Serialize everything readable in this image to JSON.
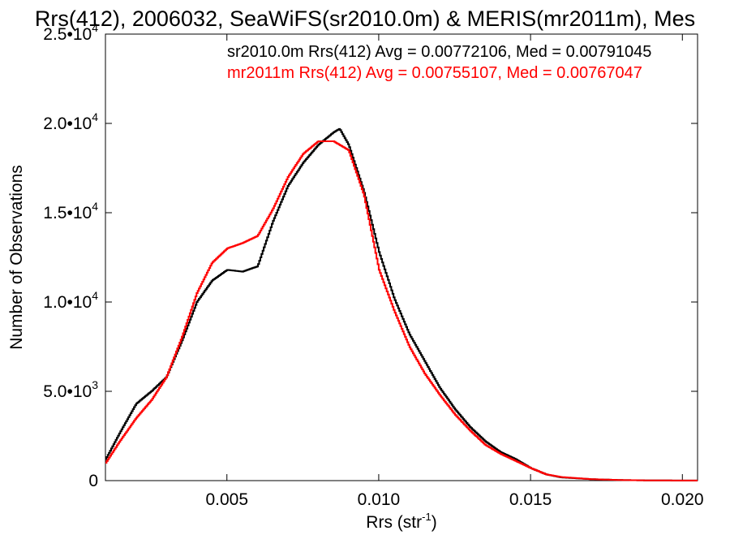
{
  "chart_data": {
    "type": "line",
    "title": "Rrs(412), 2006032, SeaWiFS(sr2010.0m) & MERIS(mr2011m), Mes",
    "xlabel_base": "Rrs (str",
    "xlabel_sup": "-1",
    "xlabel_end": ")",
    "ylabel": "Number of Observations",
    "xlim": [
      0.001,
      0.0205
    ],
    "ylim": [
      0,
      25000
    ],
    "x_ticks": [
      {
        "value": 0.005,
        "label": "0.005"
      },
      {
        "value": 0.01,
        "label": "0.010"
      },
      {
        "value": 0.015,
        "label": "0.015"
      },
      {
        "value": 0.02,
        "label": "0.020"
      }
    ],
    "y_ticks": [
      {
        "value": 0,
        "mant": "0",
        "exp": ""
      },
      {
        "value": 5000,
        "mant": "5.0•10",
        "exp": "3"
      },
      {
        "value": 10000,
        "mant": "1.0•10",
        "exp": "4"
      },
      {
        "value": 15000,
        "mant": "1.5•10",
        "exp": "4"
      },
      {
        "value": 20000,
        "mant": "2.0•10",
        "exp": "4"
      },
      {
        "value": 25000,
        "mant": "2.5•10",
        "exp": "4"
      }
    ],
    "legend": [
      {
        "text": "sr2010.0m Rrs(412) Avg = 0.00772106, Med = 0.00791045",
        "color": "#000000"
      },
      {
        "text": "mr2011m Rrs(412) Avg = 0.00755107, Med = 0.00767047",
        "color": "#ff0000"
      }
    ],
    "series": [
      {
        "color": "#000000",
        "x": [
          0.001,
          0.0015,
          0.002,
          0.0025,
          0.003,
          0.0035,
          0.004,
          0.0045,
          0.005,
          0.0055,
          0.006,
          0.0065,
          0.007,
          0.0075,
          0.008,
          0.0085,
          0.0087,
          0.009,
          0.0095,
          0.01,
          0.0105,
          0.011,
          0.0115,
          0.012,
          0.0125,
          0.013,
          0.0135,
          0.014,
          0.0145,
          0.015,
          0.0155,
          0.016,
          0.017,
          0.018,
          0.019,
          0.02,
          0.0205
        ],
        "y": [
          1200,
          2800,
          4300,
          5000,
          5800,
          7800,
          10000,
          11200,
          11800,
          11700,
          12000,
          14500,
          16500,
          17800,
          18800,
          19500,
          19700,
          18800,
          16200,
          12800,
          10200,
          8200,
          6700,
          5200,
          4000,
          3000,
          2200,
          1600,
          1200,
          700,
          350,
          180,
          80,
          30,
          10,
          5,
          5
        ]
      },
      {
        "color": "#ff0000",
        "x": [
          0.001,
          0.0015,
          0.002,
          0.0025,
          0.003,
          0.0035,
          0.004,
          0.0045,
          0.005,
          0.0055,
          0.006,
          0.0065,
          0.007,
          0.0075,
          0.008,
          0.0085,
          0.009,
          0.0095,
          0.01,
          0.0105,
          0.011,
          0.0115,
          0.012,
          0.0125,
          0.013,
          0.0135,
          0.014,
          0.0145,
          0.015,
          0.0155,
          0.016,
          0.017,
          0.018,
          0.019,
          0.02,
          0.0205
        ],
        "y": [
          1000,
          2300,
          3500,
          4500,
          5800,
          8000,
          10500,
          12200,
          13000,
          13300,
          13700,
          15200,
          17000,
          18300,
          19000,
          19000,
          18500,
          16000,
          11800,
          9500,
          7500,
          6000,
          4800,
          3700,
          2800,
          2000,
          1500,
          1100,
          700,
          350,
          200,
          80,
          30,
          10,
          5,
          5
        ]
      }
    ]
  }
}
